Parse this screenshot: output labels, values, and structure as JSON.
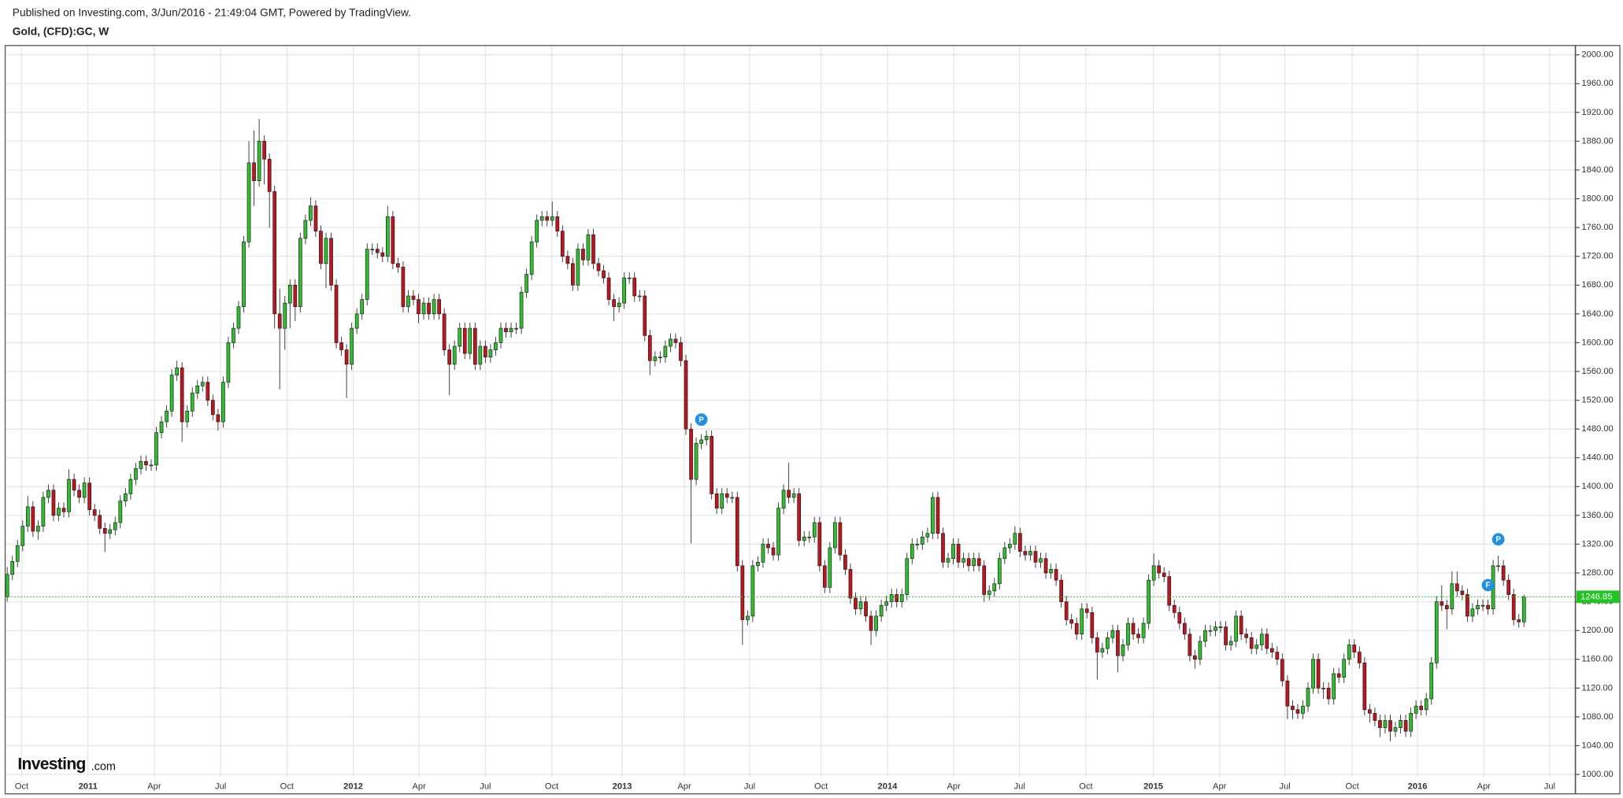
{
  "chart_data": {
    "type": "candlestick",
    "subtitle": "Published on Investing.com, 3/Jun/2016 - 21:49:04 GMT, Powered by TradingView.",
    "title": "Gold, (CFD):GC, W",
    "up_color": "#2fbf2f",
    "down_color": "#c0141e",
    "last_line_color": "#22c322",
    "grid": true,
    "open": [
      1247,
      1278,
      1296,
      1318,
      1345,
      1372,
      1338,
      1345,
      1385,
      1395,
      1360,
      1370,
      1365,
      1410,
      1395,
      1385,
      1405,
      1368,
      1360,
      1342,
      1335,
      1340,
      1350,
      1380,
      1390,
      1410,
      1425,
      1435,
      1430,
      1430,
      1475,
      1490,
      1505,
      1555,
      1565,
      1490,
      1505,
      1530,
      1540,
      1545,
      1520,
      1500,
      1490,
      1545,
      1600,
      1620,
      1650,
      1740,
      1850,
      1825,
      1880,
      1855,
      1810,
      1640,
      1620,
      1655,
      1680,
      1650,
      1745,
      1770,
      1790,
      1755,
      1710,
      1745,
      1680,
      1600,
      1590,
      1570,
      1620,
      1640,
      1660,
      1730,
      1730,
      1725,
      1720,
      1775,
      1710,
      1705,
      1650,
      1665,
      1660,
      1640,
      1655,
      1640,
      1660,
      1640,
      1590,
      1570,
      1595,
      1620,
      1585,
      1620,
      1570,
      1595,
      1580,
      1590,
      1600,
      1620,
      1615,
      1620,
      1620,
      1670,
      1695,
      1740,
      1770,
      1775,
      1770,
      1775,
      1755,
      1720,
      1710,
      1680,
      1730,
      1715,
      1750,
      1710,
      1700,
      1690,
      1660,
      1650,
      1655,
      1690,
      1690,
      1665,
      1665,
      1610,
      1575,
      1580,
      1580,
      1595,
      1605,
      1600,
      1575,
      1480,
      1410,
      1460,
      1465,
      1470,
      1390,
      1370,
      1390,
      1385,
      1385,
      1290,
      1215,
      1220,
      1290,
      1295,
      1320,
      1315,
      1305,
      1370,
      1395,
      1385,
      1390,
      1325,
      1330,
      1330,
      1350,
      1290,
      1260,
      1315,
      1350,
      1305,
      1285,
      1245,
      1230,
      1240,
      1220,
      1200,
      1220,
      1235,
      1240,
      1250,
      1240,
      1250,
      1300,
      1320,
      1320,
      1330,
      1335,
      1385,
      1335,
      1295,
      1300,
      1320,
      1295,
      1300,
      1290,
      1300,
      1290,
      1250,
      1255,
      1265,
      1300,
      1315,
      1320,
      1335,
      1310,
      1305,
      1310,
      1295,
      1300,
      1280,
      1285,
      1270,
      1240,
      1215,
      1210,
      1195,
      1230,
      1225,
      1190,
      1170,
      1175,
      1190,
      1200,
      1165,
      1180,
      1210,
      1195,
      1190,
      1210,
      1270,
      1290,
      1280,
      1275,
      1235,
      1225,
      1210,
      1195,
      1165,
      1160,
      1185,
      1200,
      1200,
      1205,
      1205,
      1180,
      1185,
      1220,
      1195,
      1190,
      1175,
      1180,
      1195,
      1175,
      1170,
      1160,
      1130,
      1095,
      1090,
      1085,
      1095,
      1120,
      1160,
      1120,
      1120,
      1105,
      1140,
      1135,
      1160,
      1180,
      1170,
      1155,
      1090,
      1085,
      1075,
      1065,
      1075,
      1060,
      1065,
      1075,
      1060,
      1085,
      1095,
      1090,
      1105,
      1155,
      1240,
      1235,
      1230,
      1265,
      1255,
      1250,
      1220,
      1230,
      1235,
      1235,
      1230,
      1290,
      1290,
      1270,
      1250,
      1215,
      1212
    ],
    "high": [
      1288,
      1304,
      1326,
      1353,
      1387,
      1380,
      1353,
      1393,
      1403,
      1403,
      1378,
      1378,
      1424,
      1418,
      1403,
      1413,
      1413,
      1376,
      1368,
      1350,
      1348,
      1358,
      1388,
      1398,
      1418,
      1433,
      1443,
      1443,
      1438,
      1483,
      1498,
      1513,
      1563,
      1575,
      1573,
      1513,
      1538,
      1548,
      1553,
      1553,
      1528,
      1508,
      1553,
      1608,
      1628,
      1658,
      1748,
      1880,
      1895,
      1911,
      1888,
      1863,
      1818,
      1675,
      1665,
      1688,
      1688,
      1753,
      1778,
      1802,
      1798,
      1763,
      1753,
      1753,
      1688,
      1608,
      1598,
      1628,
      1648,
      1668,
      1738,
      1738,
      1738,
      1733,
      1790,
      1783,
      1718,
      1713,
      1673,
      1673,
      1668,
      1663,
      1663,
      1668,
      1668,
      1648,
      1598,
      1603,
      1628,
      1628,
      1628,
      1628,
      1603,
      1603,
      1598,
      1608,
      1628,
      1628,
      1628,
      1628,
      1678,
      1703,
      1748,
      1778,
      1783,
      1783,
      1796,
      1783,
      1763,
      1728,
      1718,
      1738,
      1738,
      1758,
      1758,
      1718,
      1708,
      1698,
      1668,
      1663,
      1698,
      1698,
      1698,
      1673,
      1673,
      1618,
      1588,
      1588,
      1603,
      1613,
      1613,
      1608,
      1583,
      1488,
      1468,
      1473,
      1478,
      1478,
      1398,
      1398,
      1398,
      1393,
      1393,
      1298,
      1228,
      1298,
      1303,
      1328,
      1328,
      1323,
      1378,
      1403,
      1433,
      1398,
      1398,
      1338,
      1338,
      1358,
      1358,
      1298,
      1323,
      1358,
      1358,
      1313,
      1293,
      1253,
      1248,
      1248,
      1228,
      1228,
      1243,
      1248,
      1258,
      1258,
      1258,
      1308,
      1328,
      1328,
      1338,
      1343,
      1392,
      1393,
      1343,
      1308,
      1328,
      1328,
      1308,
      1308,
      1308,
      1308,
      1298,
      1263,
      1273,
      1308,
      1323,
      1328,
      1345,
      1343,
      1318,
      1318,
      1318,
      1308,
      1308,
      1293,
      1293,
      1278,
      1248,
      1223,
      1218,
      1238,
      1238,
      1233,
      1198,
      1183,
      1198,
      1208,
      1208,
      1188,
      1218,
      1218,
      1203,
      1218,
      1278,
      1307,
      1298,
      1288,
      1283,
      1243,
      1233,
      1218,
      1203,
      1173,
      1193,
      1208,
      1208,
      1213,
      1213,
      1213,
      1193,
      1228,
      1228,
      1203,
      1198,
      1188,
      1203,
      1203,
      1183,
      1178,
      1168,
      1138,
      1103,
      1098,
      1103,
      1128,
      1168,
      1168,
      1128,
      1128,
      1148,
      1148,
      1168,
      1188,
      1188,
      1178,
      1163,
      1098,
      1093,
      1083,
      1083,
      1083,
      1073,
      1083,
      1083,
      1093,
      1103,
      1103,
      1113,
      1163,
      1248,
      1263,
      1243,
      1282,
      1282,
      1263,
      1258,
      1238,
      1243,
      1243,
      1243,
      1298,
      1304,
      1298,
      1278,
      1258,
      1223,
      1250
    ],
    "low": [
      1240,
      1270,
      1288,
      1310,
      1337,
      1330,
      1326,
      1337,
      1377,
      1352,
      1352,
      1357,
      1357,
      1387,
      1377,
      1377,
      1360,
      1352,
      1334,
      1309,
      1327,
      1332,
      1342,
      1372,
      1382,
      1402,
      1417,
      1422,
      1422,
      1422,
      1467,
      1482,
      1497,
      1547,
      1462,
      1482,
      1497,
      1522,
      1532,
      1512,
      1492,
      1478,
      1482,
      1537,
      1592,
      1612,
      1642,
      1732,
      1790,
      1817,
      1820,
      1760,
      1620,
      1535,
      1590,
      1620,
      1630,
      1642,
      1737,
      1762,
      1747,
      1702,
      1676,
      1672,
      1592,
      1582,
      1523,
      1562,
      1612,
      1632,
      1652,
      1722,
      1717,
      1712,
      1712,
      1702,
      1697,
      1642,
      1642,
      1652,
      1627,
      1632,
      1632,
      1632,
      1632,
      1582,
      1527,
      1562,
      1587,
      1577,
      1577,
      1562,
      1562,
      1572,
      1572,
      1582,
      1592,
      1607,
      1607,
      1612,
      1612,
      1662,
      1687,
      1732,
      1762,
      1762,
      1762,
      1747,
      1712,
      1702,
      1672,
      1672,
      1707,
      1707,
      1702,
      1692,
      1682,
      1652,
      1630,
      1642,
      1647,
      1682,
      1657,
      1657,
      1602,
      1555,
      1567,
      1572,
      1572,
      1587,
      1592,
      1567,
      1472,
      1321,
      1402,
      1452,
      1457,
      1382,
      1362,
      1362,
      1377,
      1377,
      1282,
      1180,
      1207,
      1212,
      1282,
      1287,
      1307,
      1297,
      1297,
      1362,
      1377,
      1377,
      1317,
      1317,
      1322,
      1322,
      1282,
      1252,
      1252,
      1307,
      1297,
      1277,
      1237,
      1222,
      1222,
      1212,
      1180,
      1192,
      1212,
      1227,
      1232,
      1232,
      1232,
      1242,
      1292,
      1312,
      1312,
      1322,
      1327,
      1327,
      1287,
      1287,
      1292,
      1287,
      1287,
      1282,
      1282,
      1282,
      1240,
      1242,
      1247,
      1257,
      1292,
      1307,
      1312,
      1302,
      1297,
      1297,
      1287,
      1287,
      1272,
      1272,
      1262,
      1232,
      1207,
      1202,
      1187,
      1187,
      1217,
      1182,
      1132,
      1162,
      1167,
      1182,
      1142,
      1157,
      1172,
      1187,
      1182,
      1182,
      1202,
      1262,
      1272,
      1267,
      1227,
      1217,
      1202,
      1187,
      1157,
      1147,
      1152,
      1177,
      1192,
      1192,
      1197,
      1172,
      1172,
      1177,
      1187,
      1182,
      1167,
      1167,
      1172,
      1167,
      1162,
      1152,
      1122,
      1077,
      1077,
      1077,
      1077,
      1087,
      1112,
      1112,
      1105,
      1097,
      1097,
      1127,
      1127,
      1152,
      1162,
      1147,
      1082,
      1072,
      1067,
      1052,
      1057,
      1046,
      1052,
      1057,
      1052,
      1052,
      1077,
      1082,
      1082,
      1097,
      1147,
      1227,
      1202,
      1222,
      1247,
      1242,
      1212,
      1212,
      1222,
      1227,
      1222,
      1222,
      1282,
      1262,
      1242,
      1207,
      1204,
      1205
    ],
    "close": [
      1278,
      1296,
      1318,
      1345,
      1372,
      1338,
      1345,
      1385,
      1395,
      1360,
      1370,
      1365,
      1410,
      1395,
      1385,
      1405,
      1368,
      1360,
      1342,
      1335,
      1340,
      1350,
      1380,
      1390,
      1410,
      1425,
      1435,
      1430,
      1430,
      1475,
      1490,
      1505,
      1555,
      1565,
      1490,
      1505,
      1530,
      1540,
      1545,
      1520,
      1500,
      1490,
      1545,
      1600,
      1620,
      1650,
      1740,
      1850,
      1825,
      1880,
      1855,
      1810,
      1640,
      1620,
      1655,
      1680,
      1650,
      1745,
      1770,
      1790,
      1755,
      1710,
      1745,
      1680,
      1600,
      1590,
      1570,
      1620,
      1640,
      1660,
      1730,
      1730,
      1725,
      1720,
      1775,
      1710,
      1705,
      1650,
      1665,
      1660,
      1640,
      1655,
      1640,
      1660,
      1640,
      1590,
      1570,
      1595,
      1620,
      1585,
      1620,
      1570,
      1595,
      1580,
      1590,
      1600,
      1620,
      1615,
      1620,
      1620,
      1670,
      1695,
      1740,
      1770,
      1775,
      1770,
      1775,
      1755,
      1720,
      1710,
      1680,
      1730,
      1715,
      1750,
      1710,
      1700,
      1690,
      1660,
      1650,
      1655,
      1690,
      1690,
      1665,
      1665,
      1610,
      1575,
      1580,
      1580,
      1595,
      1605,
      1600,
      1575,
      1480,
      1410,
      1460,
      1465,
      1470,
      1390,
      1370,
      1390,
      1385,
      1385,
      1290,
      1215,
      1220,
      1290,
      1295,
      1320,
      1315,
      1305,
      1370,
      1395,
      1385,
      1390,
      1325,
      1330,
      1330,
      1350,
      1290,
      1260,
      1315,
      1350,
      1305,
      1285,
      1245,
      1230,
      1240,
      1220,
      1200,
      1220,
      1235,
      1240,
      1250,
      1240,
      1250,
      1300,
      1320,
      1320,
      1330,
      1335,
      1385,
      1335,
      1295,
      1300,
      1320,
      1295,
      1300,
      1290,
      1300,
      1290,
      1250,
      1255,
      1265,
      1300,
      1315,
      1320,
      1335,
      1310,
      1305,
      1310,
      1295,
      1300,
      1280,
      1285,
      1270,
      1240,
      1215,
      1210,
      1195,
      1230,
      1225,
      1190,
      1170,
      1175,
      1190,
      1200,
      1165,
      1180,
      1210,
      1195,
      1190,
      1210,
      1270,
      1290,
      1280,
      1275,
      1235,
      1225,
      1210,
      1195,
      1165,
      1160,
      1185,
      1200,
      1200,
      1205,
      1205,
      1180,
      1185,
      1220,
      1195,
      1190,
      1175,
      1180,
      1195,
      1175,
      1170,
      1160,
      1130,
      1095,
      1090,
      1085,
      1095,
      1120,
      1160,
      1120,
      1120,
      1105,
      1140,
      1135,
      1160,
      1180,
      1170,
      1155,
      1090,
      1085,
      1075,
      1065,
      1075,
      1060,
      1065,
      1075,
      1060,
      1085,
      1095,
      1090,
      1105,
      1155,
      1240,
      1235,
      1230,
      1265,
      1255,
      1250,
      1220,
      1230,
      1235,
      1235,
      1230,
      1290,
      1290,
      1270,
      1250,
      1215,
      1212,
      1246.85
    ],
    "xlim": [
      -0.4,
      305
    ],
    "xticks": [
      {
        "value": 2.8,
        "label": "Oct"
      },
      {
        "value": 15.7,
        "label": "2011"
      },
      {
        "value": 28.6,
        "label": "Apr"
      },
      {
        "value": 41.5,
        "label": "Jul"
      },
      {
        "value": 54.4,
        "label": "Oct"
      },
      {
        "value": 67.3,
        "label": "2012"
      },
      {
        "value": 80.1,
        "label": "Apr"
      },
      {
        "value": 93,
        "label": "Jul"
      },
      {
        "value": 105.9,
        "label": "Oct"
      },
      {
        "value": 119.6,
        "label": "2013"
      },
      {
        "value": 131.7,
        "label": "Apr"
      },
      {
        "value": 144.4,
        "label": "Jul"
      },
      {
        "value": 158.3,
        "label": "Oct"
      },
      {
        "value": 171.2,
        "label": "2014"
      },
      {
        "value": 184.1,
        "label": "Apr"
      },
      {
        "value": 196.9,
        "label": "Jul"
      },
      {
        "value": 209.8,
        "label": "Oct"
      },
      {
        "value": 222.9,
        "label": "2015"
      },
      {
        "value": 235.8,
        "label": "Apr"
      },
      {
        "value": 248.5,
        "label": "Jul"
      },
      {
        "value": 261.6,
        "label": "Oct"
      },
      {
        "value": 274.3,
        "label": "2016"
      },
      {
        "value": 287.2,
        "label": "Apr"
      },
      {
        "value": 300,
        "label": "Jul"
      }
    ],
    "ylim": [
      973,
      2013
    ],
    "yticks": [
      {
        "value": 1000,
        "label": "1000.00"
      },
      {
        "value": 1040,
        "label": "1040.00"
      },
      {
        "value": 1080,
        "label": "1080.00"
      },
      {
        "value": 1120,
        "label": "1120.00"
      },
      {
        "value": 1160,
        "label": "1160.00"
      },
      {
        "value": 1200,
        "label": "1200.00"
      },
      {
        "value": 1240,
        "label": "1240.00"
      },
      {
        "value": 1280,
        "label": "1280.00"
      },
      {
        "value": 1320,
        "label": "1320.00"
      },
      {
        "value": 1360,
        "label": "1360.00"
      },
      {
        "value": 1400,
        "label": "1400.00"
      },
      {
        "value": 1440,
        "label": "1440.00"
      },
      {
        "value": 1480,
        "label": "1480.00"
      },
      {
        "value": 1520,
        "label": "1520.00"
      },
      {
        "value": 1560,
        "label": "1560.00"
      },
      {
        "value": 1600,
        "label": "1600.00"
      },
      {
        "value": 1640,
        "label": "1640.00"
      },
      {
        "value": 1680,
        "label": "1680.00"
      },
      {
        "value": 1720,
        "label": "1720.00"
      },
      {
        "value": 1760,
        "label": "1760.00"
      },
      {
        "value": 1800,
        "label": "1800.00"
      },
      {
        "value": 1840,
        "label": "1840.00"
      },
      {
        "value": 1880,
        "label": "1880.00"
      },
      {
        "value": 1920,
        "label": "1920.00"
      },
      {
        "value": 1960,
        "label": "1960.00"
      },
      {
        "value": 2000,
        "label": "2000.00"
      }
    ],
    "annotations": [
      {
        "label": "P",
        "candle": 135
      },
      {
        "label": "F",
        "candle": 288
      },
      {
        "label": "P",
        "candle": 289
      }
    ]
  },
  "brand": {
    "name": "Investing",
    "suffix": ".com"
  }
}
